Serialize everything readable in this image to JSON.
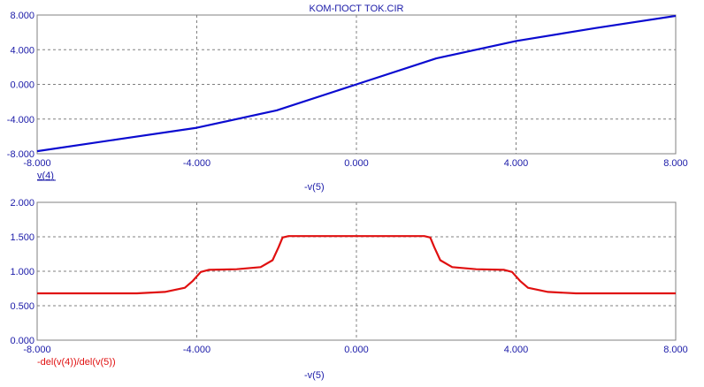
{
  "title": "KOM-ПОСТ TOK.CIR",
  "colors": {
    "axis_text": "#1a1aa8",
    "frame": "#808080",
    "grid": "#808080",
    "series_top": "#0b0bd0",
    "series_bottom": "#e01010"
  },
  "chart_data": [
    {
      "type": "line",
      "xlabel": "-v(5)",
      "ylabel": "",
      "xlim": [
        -8,
        8
      ],
      "ylim": [
        -8,
        8
      ],
      "x_ticks": [
        "-8.000",
        "-4.000",
        "0.000",
        "4.000",
        "8.000"
      ],
      "y_ticks": [
        "8.000",
        "4.000",
        "0.000",
        "-4.000",
        "-8.000"
      ],
      "grid": true,
      "series": [
        {
          "name": "v(4)",
          "x": [
            -8,
            -6,
            -4,
            -2,
            0,
            2,
            4,
            6,
            8
          ],
          "values": [
            -7.7,
            -6.35,
            -5.0,
            -3.0,
            0.0,
            3.0,
            5.0,
            6.5,
            7.9
          ]
        }
      ]
    },
    {
      "type": "line",
      "xlabel": "-v(5)",
      "ylabel": "",
      "xlim": [
        -8,
        8
      ],
      "ylim": [
        0,
        2
      ],
      "x_ticks": [
        "-8.000",
        "-4.000",
        "0.000",
        "4.000",
        "8.000"
      ],
      "y_ticks": [
        "2.000",
        "1.500",
        "1.000",
        "0.500",
        "0.000"
      ],
      "grid": true,
      "series": [
        {
          "name": "-del(v(4))/del(v(5))",
          "x": [
            -8,
            -5.5,
            -4.8,
            -4.3,
            -4.1,
            -3.9,
            -3.7,
            -3.0,
            -2.4,
            -2.1,
            -1.95,
            -1.85,
            -1.7,
            1.7,
            1.85,
            1.95,
            2.1,
            2.4,
            3.0,
            3.7,
            3.9,
            4.1,
            4.3,
            4.8,
            5.5,
            8
          ],
          "values": [
            0.68,
            0.68,
            0.7,
            0.76,
            0.86,
            0.99,
            1.02,
            1.03,
            1.06,
            1.16,
            1.35,
            1.49,
            1.51,
            1.51,
            1.49,
            1.35,
            1.16,
            1.06,
            1.03,
            1.02,
            0.99,
            0.86,
            0.76,
            0.7,
            0.68,
            0.68
          ]
        }
      ]
    }
  ]
}
